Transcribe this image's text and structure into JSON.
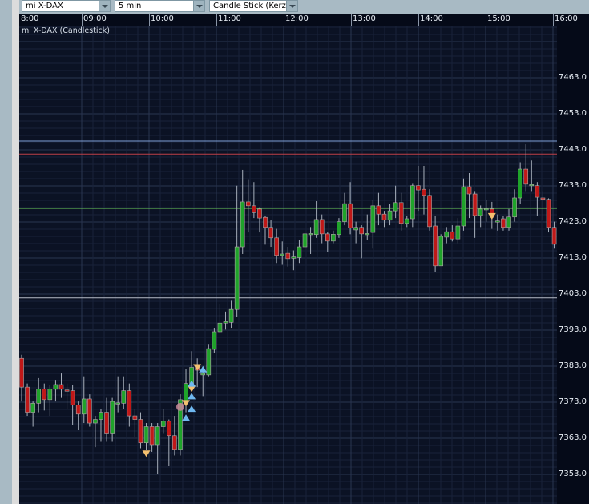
{
  "toolbar": {
    "instrument": "mi X-DAX",
    "interval": "5 min",
    "chart_type": "Candle Stick (Kerze"
  },
  "chart_title": "mi X-DAX (Candlestick)",
  "colors": {
    "up": "#1fa32a",
    "down": "#c01818",
    "background": "#0b1224",
    "line_blue": "#7fa0d8",
    "line_red": "#c04048",
    "line_green": "#6ccf5a",
    "line_gray": "#b8bcc8",
    "marker_sell": "#f4c070",
    "marker_buy": "#6fb8f0",
    "marker_dot": "#c88a9a"
  },
  "time_labels": [
    "8:00",
    "09:00",
    "10:00",
    "11:00",
    "12:00",
    "13:00",
    "14:00",
    "15:00",
    "16:00"
  ],
  "price_labels": [
    "7463.0",
    "7453.0",
    "7443.0",
    "7433.0",
    "7423.0",
    "7413.0",
    "7403.0",
    "7393.0",
    "7383.0",
    "7373.0",
    "7363.0",
    "7353.0"
  ],
  "chart_data": {
    "type": "candlestick",
    "interval": "5 min",
    "ylim": [
      7349,
      7478
    ],
    "x_range": [
      "08:00",
      "16:00"
    ],
    "grid": true,
    "levels": [
      {
        "price": 7445.4,
        "color": "#7fa0d8"
      },
      {
        "price": 7441.8,
        "color": "#c04048"
      },
      {
        "price": 7426.7,
        "color": "#6ccf5a"
      },
      {
        "price": 7401.8,
        "color": "#b8bcc8"
      }
    ],
    "ohlc": [
      [
        7385,
        7386,
        7373,
        7377
      ],
      [
        7377,
        7378,
        7369,
        7370
      ],
      [
        7370,
        7373,
        7366,
        7372.5
      ],
      [
        7372.5,
        7379.5,
        7370,
        7376.5
      ],
      [
        7376.5,
        7378,
        7370.5,
        7373.5
      ],
      [
        7373.5,
        7377.5,
        7369,
        7376.5
      ],
      [
        7376.4,
        7379,
        7373,
        7377.7
      ],
      [
        7377.7,
        7380.8,
        7374,
        7376.4
      ],
      [
        7376.2,
        7378,
        7371,
        7376
      ],
      [
        7376,
        7377.5,
        7366.5,
        7372
      ],
      [
        7372,
        7373,
        7365,
        7369.5
      ],
      [
        7369.5,
        7380,
        7367,
        7373.7
      ],
      [
        7373.7,
        7375,
        7366,
        7367
      ],
      [
        7367,
        7369,
        7360.3,
        7368
      ],
      [
        7368,
        7371,
        7362,
        7370
      ],
      [
        7370,
        7374,
        7362,
        7364
      ],
      [
        7364,
        7374,
        7362,
        7373
      ],
      [
        7372.3,
        7380,
        7370,
        7372.6
      ],
      [
        7372.5,
        7380,
        7371,
        7376
      ],
      [
        7376,
        7378,
        7366,
        7369
      ],
      [
        7369,
        7371,
        7363,
        7368
      ],
      [
        7368,
        7370,
        7360,
        7361.5
      ],
      [
        7361.5,
        7367,
        7359.5,
        7366
      ],
      [
        7366,
        7367,
        7359,
        7361
      ],
      [
        7361,
        7367,
        7352.8,
        7366
      ],
      [
        7366,
        7371,
        7364,
        7367.5
      ],
      [
        7367.5,
        7368,
        7355,
        7363.5
      ],
      [
        7363.5,
        7369,
        7358,
        7359.7
      ],
      [
        7359.7,
        7375,
        7358,
        7373.5
      ],
      [
        7373,
        7382,
        7370,
        7378
      ],
      [
        7378,
        7387,
        7376,
        7382.5
      ],
      [
        7382.8,
        7385,
        7377,
        7381.7
      ],
      [
        7380.4,
        7382,
        7374.5,
        7380.8
      ],
      [
        7380.4,
        7389,
        7380,
        7387.7
      ],
      [
        7387.5,
        7393.5,
        7386.5,
        7392.4
      ],
      [
        7392.4,
        7400,
        7392,
        7394.8
      ],
      [
        7394.8,
        7398,
        7393,
        7395.2
      ],
      [
        7395,
        7401,
        7393.5,
        7398.6
      ],
      [
        7398.6,
        7433,
        7396.5,
        7416
      ],
      [
        7416,
        7437.4,
        7414,
        7428.5
      ],
      [
        7428.5,
        7434.6,
        7420,
        7427.4
      ],
      [
        7427.4,
        7434,
        7424,
        7425.5
      ],
      [
        7426.5,
        7427,
        7420,
        7424
      ],
      [
        7424.2,
        7424.5,
        7416.6,
        7421.4
      ],
      [
        7421.4,
        7423.5,
        7416,
        7418.5
      ],
      [
        7418.5,
        7421,
        7411.5,
        7413.6
      ],
      [
        7413.6,
        7417.5,
        7411,
        7414
      ],
      [
        7414.2,
        7416,
        7410.5,
        7412.7
      ],
      [
        7412.8,
        7415,
        7409.5,
        7413.2
      ],
      [
        7413,
        7418,
        7411.5,
        7416
      ],
      [
        7416,
        7422,
        7414.5,
        7419.6
      ],
      [
        7419.4,
        7421.5,
        7414,
        7419.7
      ],
      [
        7419.4,
        7428.7,
        7418.5,
        7423.6
      ],
      [
        7423.6,
        7425,
        7417,
        7419.6
      ],
      [
        7419.6,
        7420,
        7414.5,
        7417.6
      ],
      [
        7417.6,
        7420.5,
        7417,
        7419.5
      ],
      [
        7419.4,
        7424,
        7418.5,
        7423
      ],
      [
        7423,
        7431,
        7422,
        7428
      ],
      [
        7428,
        7434,
        7419.5,
        7421.2
      ],
      [
        7420.7,
        7423,
        7417,
        7421.4
      ],
      [
        7421.4,
        7422,
        7412.8,
        7419.6
      ],
      [
        7419.5,
        7425,
        7418,
        7419.7
      ],
      [
        7420,
        7429,
        7415.5,
        7427.4
      ],
      [
        7427.4,
        7431,
        7422,
        7425.1
      ],
      [
        7425.1,
        7426,
        7421.5,
        7423.4
      ],
      [
        7423.4,
        7428,
        7422,
        7426
      ],
      [
        7426,
        7433,
        7424,
        7428.3
      ],
      [
        7428.3,
        7431,
        7420.5,
        7422.5
      ],
      [
        7422.5,
        7424.5,
        7421.5,
        7423.8
      ],
      [
        7423.8,
        7433.5,
        7421.5,
        7433
      ],
      [
        7433,
        7438.5,
        7426,
        7431.8
      ],
      [
        7432,
        7438.5,
        7425,
        7430.3
      ],
      [
        7430.3,
        7432,
        7420.5,
        7421.6
      ],
      [
        7421.8,
        7424.5,
        7409,
        7410.7
      ],
      [
        7410.7,
        7419.5,
        7410.7,
        7418.9
      ],
      [
        7418.7,
        7421.5,
        7417,
        7420.2
      ],
      [
        7420.2,
        7422,
        7417.5,
        7418.2
      ],
      [
        7418.2,
        7424,
        7417,
        7421.8
      ],
      [
        7421.8,
        7435,
        7420.5,
        7432.7
      ],
      [
        7432.7,
        7436.5,
        7424,
        7430.7
      ],
      [
        7430.7,
        7431.5,
        7418.5,
        7424.7
      ],
      [
        7424.7,
        7427.5,
        7421.5,
        7426.5
      ],
      [
        7426.4,
        7429,
        7423,
        7426.6
      ],
      [
        7426.5,
        7428.5,
        7421,
        7424.2
      ],
      [
        7423,
        7425,
        7420.5,
        7423.2
      ],
      [
        7423.8,
        7424.5,
        7420.5,
        7421.4
      ],
      [
        7421.4,
        7426.5,
        7420.5,
        7424.3
      ],
      [
        7424.3,
        7432,
        7423,
        7429.6
      ],
      [
        7429.6,
        7439.5,
        7428,
        7437.6
      ],
      [
        7437.6,
        7444.5,
        7431.5,
        7433.4
      ],
      [
        7433.1,
        7440,
        7431.5,
        7433.3
      ],
      [
        7433,
        7434,
        7424.5,
        7429.8
      ],
      [
        7429.6,
        7431.5,
        7423.5,
        7429.2
      ],
      [
        7429.2,
        7429.5,
        7420,
        7421.4
      ],
      [
        7421.4,
        7423,
        7415.5,
        7416.7
      ]
    ],
    "markers": [
      {
        "bar": 22,
        "price": 7358.5,
        "type": "sell"
      },
      {
        "bar": 28,
        "price": 7371.5,
        "type": "dot"
      },
      {
        "bar": 29,
        "price": 7368.5,
        "type": "buy"
      },
      {
        "bar": 29,
        "price": 7372.5,
        "type": "sell"
      },
      {
        "bar": 30,
        "price": 7371,
        "type": "buy"
      },
      {
        "bar": 30,
        "price": 7374.5,
        "type": "buy"
      },
      {
        "bar": 30,
        "price": 7376.5,
        "type": "sell"
      },
      {
        "bar": 30,
        "price": 7378,
        "type": "buy"
      },
      {
        "bar": 31,
        "price": 7382.5,
        "type": "sell"
      },
      {
        "bar": 32,
        "price": 7382,
        "type": "buy"
      },
      {
        "bar": 83,
        "price": 7424.5,
        "type": "sell"
      }
    ]
  }
}
